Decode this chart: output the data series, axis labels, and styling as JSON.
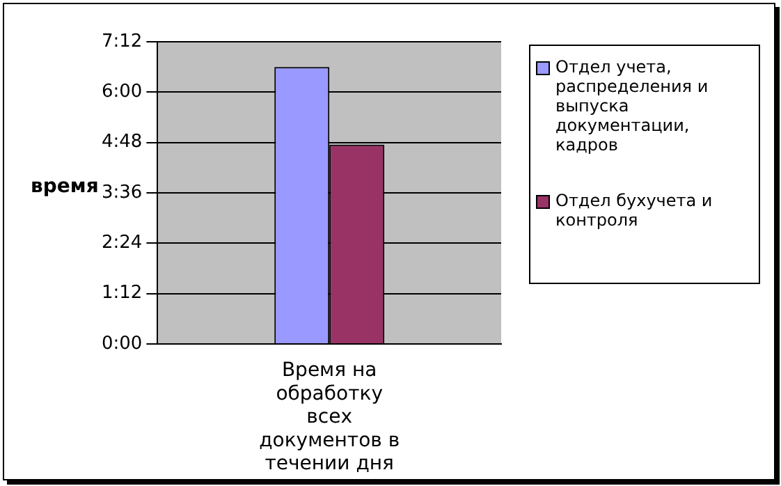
{
  "chart_data": {
    "type": "bar",
    "ylabel": "время",
    "categories": [
      "Время на обработку всех документов в течении дня"
    ],
    "series": [
      {
        "name": "Отдел учета, распределения и выпуска документации, кадров",
        "color": "#9999ff",
        "values": [
          6.6
        ]
      },
      {
        "name": "Отдел бухучета и контроля",
        "color": "#993366",
        "values": [
          4.75
        ]
      }
    ],
    "ylim": [
      0,
      7.2
    ],
    "yticks": [
      {
        "value": 0,
        "label": "0:00"
      },
      {
        "value": 1.2,
        "label": "1:12"
      },
      {
        "value": 2.4,
        "label": "2:24"
      },
      {
        "value": 3.6,
        "label": "3:36"
      },
      {
        "value": 4.8,
        "label": "4:48"
      },
      {
        "value": 6,
        "label": "6:00"
      },
      {
        "value": 7.2,
        "label": "7:12"
      }
    ],
    "grid": "y",
    "legend": "right"
  }
}
